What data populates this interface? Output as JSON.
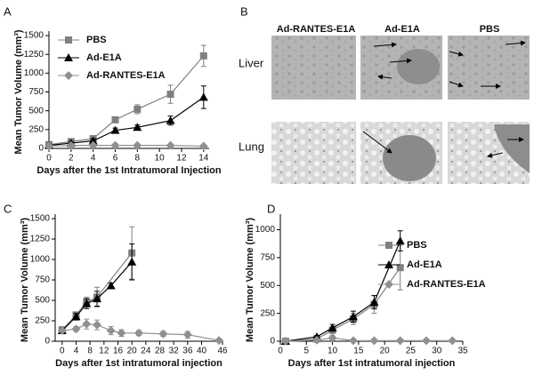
{
  "chart_data": [
    {
      "type": "line",
      "panel": "A",
      "ylabel": "Mean Tumor Volume (mm³)",
      "xlabel": "Days after the 1st Intratumoral Injection",
      "xlim": [
        0,
        14.5
      ],
      "xticks": [
        0,
        2,
        4,
        6,
        8,
        10,
        12,
        14
      ],
      "ylim": [
        0,
        1500
      ],
      "yticks": [
        0,
        250,
        500,
        750,
        1000,
        1250,
        1500
      ],
      "legend": "upper left",
      "series": [
        {
          "name": "PBS",
          "color": "#808080",
          "marker": "square",
          "x": [
            0,
            2,
            4,
            6,
            8,
            11,
            14
          ],
          "values": [
            50,
            90,
            130,
            380,
            520,
            720,
            1230
          ],
          "errors": [
            20,
            30,
            30,
            30,
            60,
            120,
            140
          ]
        },
        {
          "name": "Ad-E1A",
          "color": "#000000",
          "marker": "triangle",
          "x": [
            0,
            2,
            4,
            6,
            8,
            11,
            14
          ],
          "values": [
            40,
            70,
            100,
            240,
            280,
            370,
            680
          ],
          "errors": [
            15,
            20,
            30,
            30,
            30,
            60,
            150
          ]
        },
        {
          "name": "Ad-RANTES-E1A",
          "color": "#909090",
          "marker": "diamond",
          "x": [
            0,
            2,
            4,
            6,
            8,
            11,
            14
          ],
          "values": [
            30,
            40,
            40,
            40,
            40,
            40,
            30
          ],
          "errors": [
            10,
            10,
            10,
            10,
            10,
            10,
            10
          ]
        }
      ]
    },
    {
      "type": "line",
      "panel": "C",
      "ylabel": "Mean Tumor Volume (mm³)",
      "xlabel": "Days after 1st intratumoral injection",
      "xlim": [
        -2,
        46
      ],
      "xticks": [
        0,
        4,
        8,
        12,
        16,
        20,
        24,
        28,
        32,
        36,
        40,
        46
      ],
      "ylim": [
        0,
        1500
      ],
      "yticks": [
        0,
        250,
        500,
        750,
        1000,
        1250,
        1500
      ],
      "legend": "none",
      "series": [
        {
          "name": "PBS",
          "color": "#808080",
          "marker": "square",
          "x": [
            0,
            4,
            7,
            10,
            20
          ],
          "values": [
            140,
            320,
            480,
            540,
            1080
          ],
          "errors": [
            30,
            40,
            60,
            120,
            320
          ]
        },
        {
          "name": "Ad-E1A",
          "color": "#000000",
          "marker": "triangle",
          "x": [
            0,
            4,
            7,
            10,
            14,
            20
          ],
          "values": [
            130,
            300,
            460,
            520,
            680,
            970
          ],
          "errors": [
            30,
            40,
            60,
            90,
            30,
            220
          ]
        },
        {
          "name": "Ad-RANTES-E1A",
          "color": "#909090",
          "marker": "diamond",
          "x": [
            0,
            4,
            7,
            10,
            14,
            17,
            22,
            29,
            36,
            45
          ],
          "values": [
            130,
            150,
            210,
            200,
            130,
            100,
            100,
            90,
            80,
            10
          ],
          "errors": [
            20,
            30,
            60,
            60,
            50,
            40,
            30,
            30,
            40,
            5
          ]
        }
      ]
    },
    {
      "type": "line",
      "panel": "D",
      "ylabel": "Mean Tumor Volume (mm³)",
      "xlabel": "Days after 1st intratumoral injection",
      "xlim": [
        0,
        35
      ],
      "xticks": [
        0,
        5,
        10,
        15,
        20,
        25,
        30,
        35
      ],
      "ylim": [
        0,
        1100
      ],
      "yticks": [
        0,
        250,
        500,
        750,
        1000
      ],
      "legend": "right",
      "series": [
        {
          "name": "PBS",
          "color": "#808080",
          "marker": "square",
          "x": [
            1,
            7,
            10,
            14,
            18,
            23
          ],
          "values": [
            0,
            20,
            100,
            200,
            330,
            660
          ],
          "errors": [
            5,
            10,
            30,
            50,
            80,
            200
          ]
        },
        {
          "name": "Ad-E1A",
          "color": "#000000",
          "marker": "triangle",
          "x": [
            1,
            7,
            10,
            14,
            18,
            23
          ],
          "values": [
            0,
            40,
            120,
            220,
            350,
            900
          ],
          "errors": [
            5,
            10,
            30,
            50,
            60,
            90
          ]
        },
        {
          "name": "Ad-RANTES-E1A",
          "color": "#909090",
          "marker": "diamond",
          "x": [
            1,
            7,
            10,
            14,
            18,
            23,
            28,
            33
          ],
          "values": [
            0,
            10,
            30,
            5,
            5,
            5,
            5,
            5
          ],
          "errors": [
            3,
            5,
            20,
            3,
            3,
            3,
            3,
            3
          ]
        }
      ]
    }
  ],
  "panel_b": {
    "panel": "B",
    "columns": [
      "Ad-RANTES-E1A",
      "Ad-E1A",
      "PBS"
    ],
    "rows": [
      "Liver",
      "Lung"
    ]
  }
}
